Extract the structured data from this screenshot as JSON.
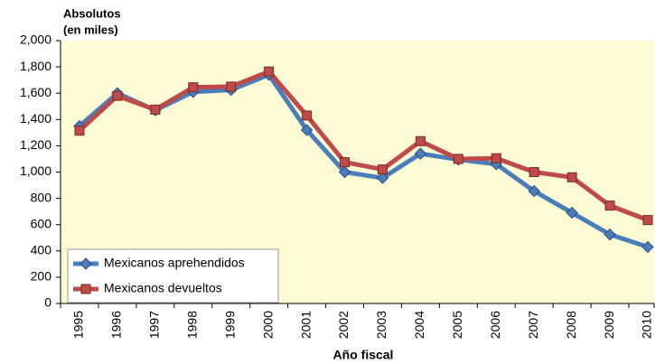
{
  "chart_data": {
    "type": "line",
    "y_label": [
      "Absolutos",
      "(en miles)"
    ],
    "x_label": "Año fiscal",
    "categories": [
      "1995",
      "1996",
      "1997",
      "1998",
      "1999",
      "2000",
      "2001",
      "2002",
      "2003",
      "2004",
      "2005",
      "2006",
      "2007",
      "2008",
      "2009",
      "2010"
    ],
    "series": [
      {
        "name": "Mexicanos aprehendidos",
        "color": "#4a7ebb",
        "marker": "diamond",
        "values": [
          1350,
          1600,
          1470,
          1610,
          1625,
          1740,
          1320,
          1000,
          955,
          1140,
          1095,
          1060,
          855,
          690,
          525,
          430
        ]
      },
      {
        "name": "Mexicanos devueltos",
        "color": "#be4b48",
        "marker": "square",
        "values": [
          1315,
          1580,
          1475,
          1645,
          1650,
          1765,
          1430,
          1075,
          1020,
          1235,
          1100,
          1105,
          1000,
          960,
          745,
          635
        ]
      }
    ],
    "ylim": [
      0,
      2000
    ],
    "yticks": [
      0,
      200,
      400,
      600,
      800,
      {
        "value": 1000,
        "label": "1,000"
      },
      {
        "value": 1200,
        "label": "1,200"
      },
      {
        "value": 1400,
        "label": "1,400"
      },
      {
        "value": 1600,
        "label": "1,600"
      },
      {
        "value": 1800,
        "label": "1,800"
      },
      {
        "value": 2000,
        "label": "2,000"
      }
    ],
    "legend": "lower left"
  }
}
